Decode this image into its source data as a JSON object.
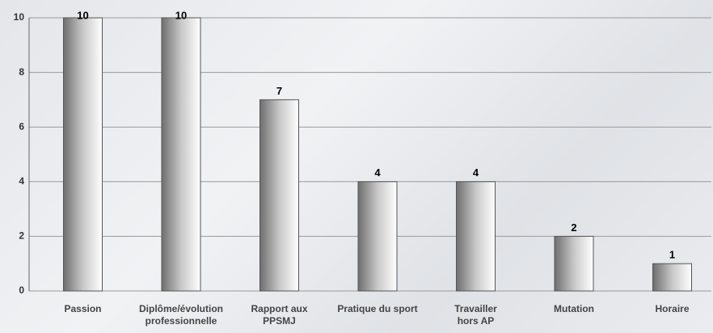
{
  "chart_data": {
    "type": "bar",
    "categories": [
      "Passion",
      "Diplôme/évolution\nprofessionnelle",
      "Rapport aux\nPPSMJ",
      "Pratique du sport",
      "Travailler\nhors AP",
      "Mutation",
      "Horaire"
    ],
    "values": [
      10,
      10,
      7,
      4,
      4,
      2,
      1
    ],
    "ylim": [
      0,
      10
    ],
    "yticks": [
      0,
      2,
      4,
      6,
      8,
      10
    ],
    "grid": true
  }
}
